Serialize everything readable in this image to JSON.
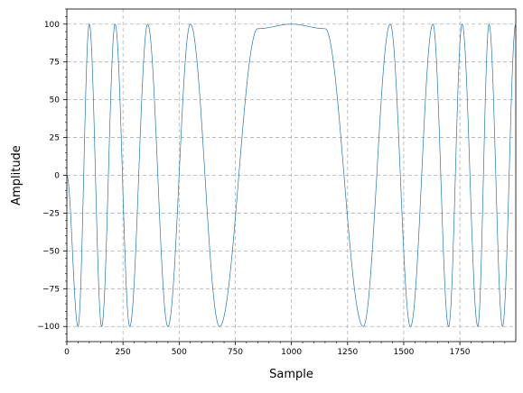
{
  "chart_data": {
    "type": "line",
    "title": "",
    "xlabel": "Sample",
    "ylabel": "Amplitude",
    "xlim": [
      0,
      1999
    ],
    "ylim": [
      -110,
      110
    ],
    "grid": true,
    "x_ticks": [
      0,
      250,
      500,
      750,
      1000,
      1250,
      1500,
      1750
    ],
    "x_tick_labels": [
      "0",
      "250",
      "500",
      "750",
      "1000",
      "1250",
      "1500",
      "1750"
    ],
    "y_ticks": [
      -100,
      -75,
      -50,
      -25,
      0,
      25,
      50,
      75,
      100
    ],
    "y_tick_labels": [
      "−100",
      "−75",
      "−50",
      "−25",
      "0",
      "25",
      "50",
      "75",
      "100"
    ],
    "line_color": "#1f77b4",
    "series": [
      {
        "x": [
          0,
          50,
          100,
          155,
          215,
          280,
          360,
          450,
          550,
          680,
          850,
          1000,
          1150,
          1320,
          1440,
          1530,
          1630,
          1700,
          1760,
          1830,
          1880,
          1940,
          1999
        ],
        "y": [
          0,
          -100,
          100,
          -100,
          100,
          -100,
          100,
          -100,
          100,
          -100,
          97,
          100,
          97,
          -100,
          100,
          -100,
          100,
          -100,
          100,
          -100,
          100,
          -100,
          100
        ]
      }
    ]
  }
}
